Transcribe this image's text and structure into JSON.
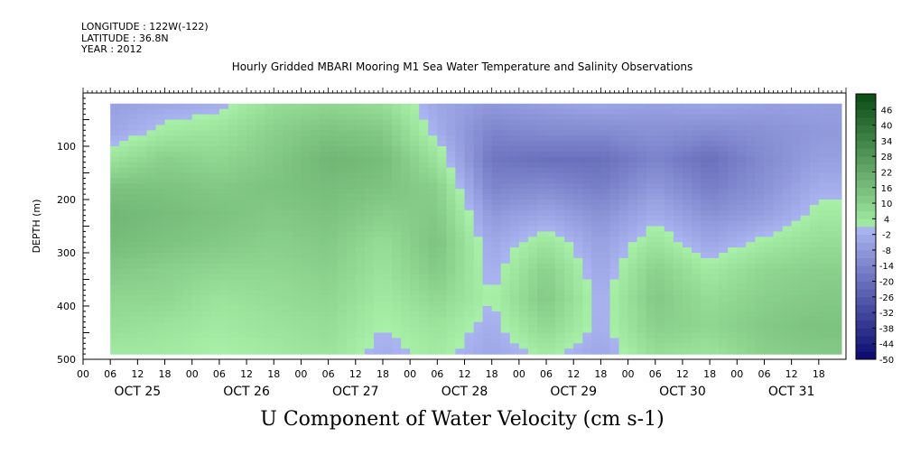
{
  "meta": {
    "longitude": "LONGITUDE : 122W(-122)",
    "latitude": "LATITUDE : 36.8N",
    "year": "YEAR : 2012"
  },
  "chart_data": {
    "type": "heatmap",
    "title": "Hourly Gridded MBARI Mooring M1 Sea Water Temperature and Salinity Observations",
    "xlabel": "U Component of Water Velocity (cm s-1)",
    "ylabel": "DEPTH (m)",
    "y_ticks": [
      100,
      200,
      300,
      400,
      500
    ],
    "ylim": [
      500,
      0
    ],
    "x_hour_ticks": [
      "00",
      "06",
      "12",
      "18",
      "00",
      "06",
      "12",
      "18",
      "00",
      "06",
      "12",
      "18",
      "00",
      "06",
      "12",
      "18",
      "00",
      "06",
      "12",
      "18",
      "00",
      "06",
      "12",
      "18",
      "00",
      "06",
      "12",
      "18"
    ],
    "x_day_labels": [
      "OCT 25",
      "OCT 26",
      "OCT 27",
      "OCT 28",
      "OCT 29",
      "OCT 30",
      "OCT 31"
    ],
    "colorbar_labels": [
      "46",
      "40",
      "34",
      "28",
      "22",
      "16",
      "10",
      "4",
      "-2",
      "-8",
      "-14",
      "-20",
      "-26",
      "-32",
      "-38",
      "-44",
      "-50"
    ],
    "colorscale_range": [
      -50,
      52
    ],
    "colorscale_colors": {
      "low": "#0a0a6e",
      "mid_low": "#aab4f0",
      "mid_high": "#a8f0a8",
      "high": "#0a4a14"
    },
    "data_depth_range": [
      20,
      490
    ],
    "data_time_start": "OCT 25 06",
    "data_time_end": "OCT 31 23",
    "columns": [
      {
        "time": "OCT 25 06",
        "u_by_depth": [
          -6,
          -4,
          4,
          14,
          18,
          16,
          12,
          8,
          6,
          2
        ]
      },
      {
        "time": "OCT 25 18",
        "u_by_depth": [
          -4,
          2,
          10,
          14,
          16,
          14,
          10,
          8,
          4,
          2
        ]
      },
      {
        "time": "OCT 26 06",
        "u_by_depth": [
          -2,
          4,
          8,
          12,
          14,
          12,
          8,
          4,
          2,
          0
        ]
      },
      {
        "time": "OCT 26 18",
        "u_by_depth": [
          6,
          10,
          12,
          14,
          12,
          10,
          8,
          6,
          4,
          2
        ]
      },
      {
        "time": "OCT 27 06",
        "u_by_depth": [
          8,
          14,
          18,
          16,
          14,
          12,
          10,
          8,
          6,
          4
        ]
      },
      {
        "time": "OCT 27 18",
        "u_by_depth": [
          6,
          12,
          16,
          14,
          10,
          6,
          4,
          2,
          0,
          -2
        ]
      },
      {
        "time": "OCT 28 06",
        "u_by_depth": [
          -4,
          -2,
          4,
          10,
          12,
          14,
          12,
          8,
          4,
          2
        ]
      },
      {
        "time": "OCT 28 18",
        "u_by_depth": [
          -8,
          -14,
          -18,
          -14,
          -8,
          -4,
          -2,
          0,
          -2,
          -4
        ]
      },
      {
        "time": "OCT 29 06",
        "u_by_depth": [
          -6,
          -12,
          -20,
          -12,
          -4,
          4,
          10,
          12,
          8,
          2
        ]
      },
      {
        "time": "OCT 29 18",
        "u_by_depth": [
          -4,
          -12,
          -20,
          -16,
          -10,
          -6,
          -4,
          -2,
          -2,
          -4
        ]
      },
      {
        "time": "OCT 30 06",
        "u_by_depth": [
          -6,
          -10,
          -14,
          -8,
          -2,
          4,
          10,
          12,
          10,
          6
        ]
      },
      {
        "time": "OCT 30 18",
        "u_by_depth": [
          -4,
          -12,
          -20,
          -16,
          -10,
          -4,
          2,
          6,
          8,
          4
        ]
      },
      {
        "time": "OCT 31 06",
        "u_by_depth": [
          -6,
          -10,
          -12,
          -10,
          -6,
          2,
          8,
          10,
          12,
          10
        ]
      },
      {
        "time": "OCT 31 18",
        "u_by_depth": [
          -6,
          -8,
          -6,
          -2,
          2,
          6,
          10,
          12,
          14,
          12
        ]
      }
    ]
  }
}
